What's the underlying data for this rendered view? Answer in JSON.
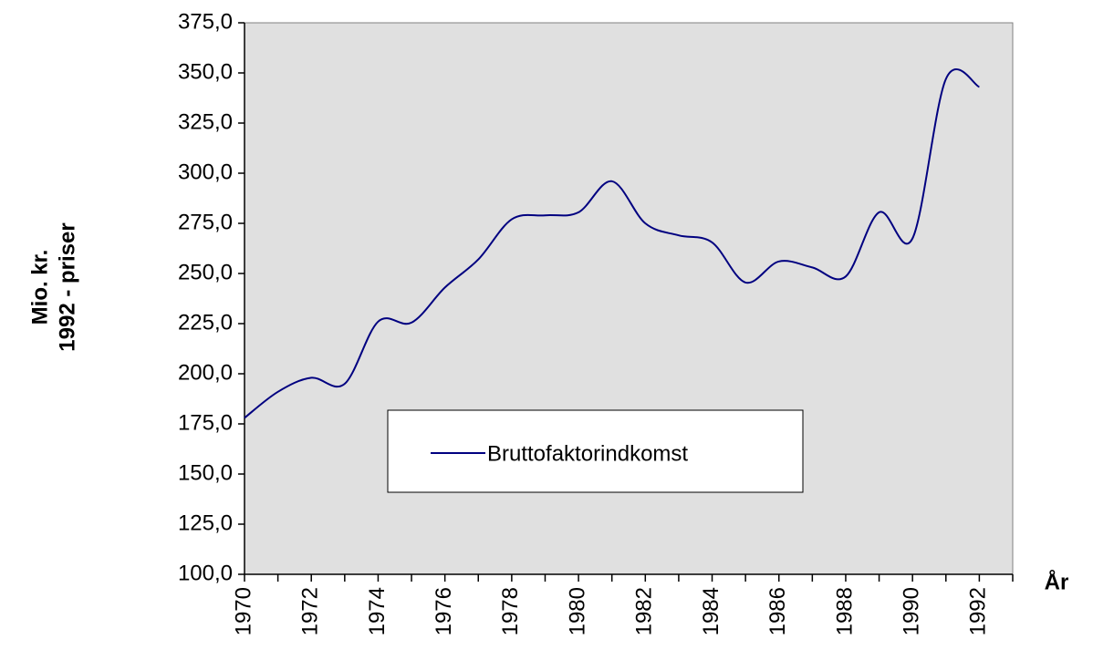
{
  "chart_data": {
    "type": "line",
    "ylabel": [
      "Mio. kr.",
      "1992 - priser"
    ],
    "xlabel": "År",
    "x": [
      1970,
      1971,
      1972,
      1973,
      1974,
      1975,
      1976,
      1977,
      1978,
      1979,
      1980,
      1981,
      1982,
      1983,
      1984,
      1985,
      1986,
      1987,
      1988,
      1989,
      1990,
      1991,
      1992
    ],
    "series": [
      {
        "name": "Bruttofaktorindkomst",
        "color": "#000080",
        "values": [
          178,
          191,
          198,
          195,
          226,
          225.5,
          243,
          257,
          277,
          279,
          280.5,
          296,
          275,
          269,
          265.5,
          245.5,
          256,
          253,
          248.5,
          280.5,
          267.5,
          347,
          343
        ]
      }
    ],
    "xlim": [
      1970,
      1993
    ],
    "xticks": [
      1970,
      1972,
      1974,
      1976,
      1978,
      1980,
      1982,
      1984,
      1986,
      1988,
      1990,
      1992
    ],
    "xminor_ticks": [
      1971,
      1973,
      1975,
      1977,
      1979,
      1981,
      1983,
      1985,
      1987,
      1989,
      1991,
      1993
    ],
    "ylim": [
      100,
      375
    ],
    "yticks": [
      {
        "value": 100,
        "label": "100,0"
      },
      {
        "value": 125,
        "label": "125,0"
      },
      {
        "value": 150,
        "label": "150,0"
      },
      {
        "value": 175,
        "label": "175,0"
      },
      {
        "value": 200,
        "label": "200,0"
      },
      {
        "value": 225,
        "label": "225,0"
      },
      {
        "value": 250,
        "label": "250,0"
      },
      {
        "value": 275,
        "label": "275,0"
      },
      {
        "value": 300,
        "label": "300,0"
      },
      {
        "value": 325,
        "label": "325,0"
      },
      {
        "value": 350,
        "label": "350,0"
      },
      {
        "value": 375,
        "label": "375,0"
      }
    ],
    "plot_background": "#e0e0e0",
    "grid": false
  }
}
